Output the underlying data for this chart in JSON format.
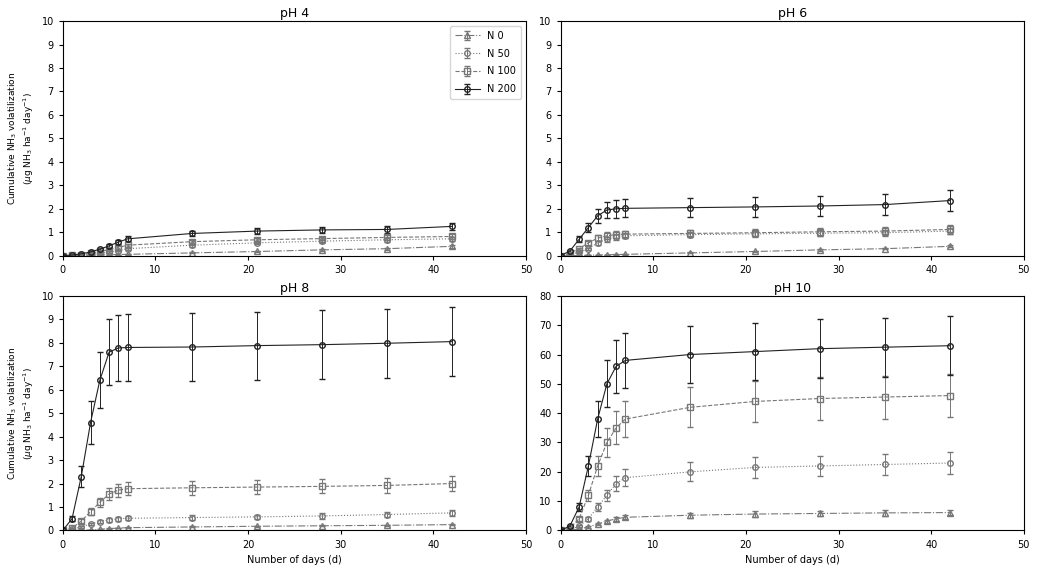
{
  "subplot_titles": [
    "pH 4",
    "pH 6",
    "pH 8",
    "pH 10"
  ],
  "legend_labels": [
    "N 0",
    "N 50",
    "N 100",
    "N 200"
  ],
  "x_days": [
    0,
    1,
    2,
    3,
    4,
    5,
    6,
    7,
    14,
    21,
    28,
    35,
    42
  ],
  "ph4": {
    "N0": [
      0,
      0.0,
      0.01,
      0.02,
      0.03,
      0.04,
      0.05,
      0.06,
      0.12,
      0.18,
      0.25,
      0.3,
      0.4
    ],
    "N50": [
      0,
      0.01,
      0.03,
      0.06,
      0.1,
      0.15,
      0.22,
      0.3,
      0.45,
      0.55,
      0.62,
      0.68,
      0.72
    ],
    "N100": [
      0,
      0.02,
      0.05,
      0.1,
      0.18,
      0.26,
      0.35,
      0.45,
      0.6,
      0.68,
      0.73,
      0.78,
      0.82
    ],
    "N200": [
      0,
      0.03,
      0.08,
      0.16,
      0.28,
      0.42,
      0.58,
      0.72,
      0.95,
      1.05,
      1.1,
      1.12,
      1.25
    ],
    "N0_err": [
      0,
      0,
      0,
      0,
      0,
      0,
      0,
      0.01,
      0.02,
      0.03,
      0.03,
      0.04,
      0.05
    ],
    "N50_err": [
      0,
      0,
      0,
      0.01,
      0.02,
      0.03,
      0.04,
      0.05,
      0.06,
      0.07,
      0.07,
      0.08,
      0.08
    ],
    "N100_err": [
      0,
      0,
      0.01,
      0.02,
      0.03,
      0.04,
      0.05,
      0.06,
      0.07,
      0.08,
      0.08,
      0.09,
      0.09
    ],
    "N200_err": [
      0,
      0.01,
      0.02,
      0.03,
      0.05,
      0.07,
      0.09,
      0.1,
      0.12,
      0.13,
      0.13,
      0.14,
      0.14
    ],
    "ylim": [
      0,
      10.0
    ],
    "yticks": [
      0.0,
      1.0,
      2.0,
      3.0,
      4.0,
      5.0,
      6.0,
      7.0,
      8.0,
      9.0,
      10.0
    ]
  },
  "ph6": {
    "N0": [
      0,
      0.0,
      0.01,
      0.02,
      0.03,
      0.04,
      0.05,
      0.06,
      0.12,
      0.18,
      0.25,
      0.3,
      0.4
    ],
    "N50": [
      0,
      0.05,
      0.15,
      0.3,
      0.55,
      0.7,
      0.8,
      0.85,
      0.9,
      0.93,
      0.96,
      0.98,
      1.05
    ],
    "N100": [
      0,
      0.1,
      0.3,
      0.55,
      0.75,
      0.85,
      0.9,
      0.92,
      0.95,
      0.98,
      1.02,
      1.05,
      1.12
    ],
    "N200": [
      0,
      0.2,
      0.7,
      1.2,
      1.7,
      1.95,
      2.0,
      2.02,
      2.05,
      2.08,
      2.12,
      2.18,
      2.35
    ],
    "N0_err": [
      0,
      0,
      0,
      0,
      0,
      0,
      0.01,
      0.01,
      0.02,
      0.02,
      0.03,
      0.03,
      0.04
    ],
    "N50_err": [
      0,
      0.01,
      0.03,
      0.05,
      0.08,
      0.1,
      0.11,
      0.11,
      0.12,
      0.12,
      0.13,
      0.13,
      0.14
    ],
    "N100_err": [
      0,
      0.02,
      0.05,
      0.08,
      0.12,
      0.14,
      0.15,
      0.15,
      0.16,
      0.16,
      0.17,
      0.17,
      0.18
    ],
    "N200_err": [
      0,
      0.04,
      0.12,
      0.2,
      0.3,
      0.35,
      0.38,
      0.38,
      0.4,
      0.41,
      0.42,
      0.43,
      0.45
    ],
    "ylim": [
      0,
      10.0
    ],
    "yticks": [
      0.0,
      1.0,
      2.0,
      3.0,
      4.0,
      5.0,
      6.0,
      7.0,
      8.0,
      9.0,
      10.0
    ]
  },
  "ph8": {
    "N0": [
      0,
      0.0,
      0.01,
      0.02,
      0.05,
      0.08,
      0.1,
      0.12,
      0.15,
      0.18,
      0.2,
      0.22,
      0.25
    ],
    "N50": [
      0,
      0.05,
      0.15,
      0.28,
      0.38,
      0.45,
      0.5,
      0.52,
      0.55,
      0.58,
      0.62,
      0.68,
      0.75
    ],
    "N100": [
      0,
      0.1,
      0.4,
      0.8,
      1.2,
      1.55,
      1.72,
      1.78,
      1.82,
      1.85,
      1.88,
      1.92,
      2.0
    ],
    "N200": [
      0,
      0.5,
      2.3,
      4.6,
      6.4,
      7.6,
      7.78,
      7.8,
      7.82,
      7.88,
      7.92,
      7.98,
      8.05
    ],
    "N0_err": [
      0,
      0,
      0,
      0,
      0.01,
      0.01,
      0.01,
      0.01,
      0.02,
      0.02,
      0.02,
      0.03,
      0.03
    ],
    "N50_err": [
      0,
      0.01,
      0.03,
      0.05,
      0.07,
      0.08,
      0.09,
      0.09,
      0.1,
      0.1,
      0.11,
      0.11,
      0.12
    ],
    "N100_err": [
      0,
      0.02,
      0.07,
      0.14,
      0.2,
      0.25,
      0.28,
      0.28,
      0.29,
      0.3,
      0.3,
      0.31,
      0.32
    ],
    "N200_err": [
      0,
      0.1,
      0.45,
      0.9,
      1.2,
      1.4,
      1.42,
      1.42,
      1.43,
      1.45,
      1.46,
      1.47,
      1.48
    ],
    "ylim": [
      0,
      10.0
    ],
    "yticks": [
      0.0,
      1.0,
      2.0,
      3.0,
      4.0,
      5.0,
      6.0,
      7.0,
      8.0,
      9.0,
      10.0
    ]
  },
  "ph10": {
    "N0": [
      0,
      0.1,
      0.5,
      1.2,
      2.2,
      3.2,
      4.0,
      4.5,
      5.2,
      5.6,
      5.8,
      6.0,
      6.1
    ],
    "N50": [
      0,
      0.3,
      1.5,
      4.0,
      8.0,
      12.0,
      16.0,
      18.0,
      20.0,
      21.5,
      22.0,
      22.5,
      23.0
    ],
    "N100": [
      0,
      0.8,
      4.0,
      12.0,
      22.0,
      30.0,
      35.0,
      38.0,
      42.0,
      44.0,
      45.0,
      45.5,
      46.0
    ],
    "N200": [
      0,
      1.5,
      8.0,
      22.0,
      38.0,
      50.0,
      56.0,
      58.0,
      60.0,
      61.0,
      62.0,
      62.5,
      63.0
    ],
    "N0_err": [
      0,
      0.02,
      0.08,
      0.2,
      0.35,
      0.5,
      0.65,
      0.72,
      0.83,
      0.9,
      0.93,
      0.96,
      0.98
    ],
    "N50_err": [
      0,
      0.05,
      0.25,
      0.65,
      1.3,
      1.95,
      2.6,
      2.9,
      3.2,
      3.45,
      3.52,
      3.6,
      3.68
    ],
    "N100_err": [
      0,
      0.13,
      0.65,
      1.95,
      3.55,
      4.85,
      5.65,
      6.13,
      6.77,
      7.09,
      7.25,
      7.33,
      7.41
    ],
    "N200_err": [
      0,
      0.24,
      1.29,
      3.54,
      6.13,
      8.06,
      9.02,
      9.34,
      9.66,
      9.82,
      9.98,
      10.06,
      10.14
    ],
    "ylim": [
      0,
      80.0
    ],
    "yticks": [
      0.0,
      10.0,
      20.0,
      30.0,
      40.0,
      50.0,
      60.0,
      70.0,
      80.0
    ]
  },
  "xlim": [
    0,
    50
  ],
  "xticks": [
    0,
    10,
    20,
    30,
    40,
    50
  ]
}
